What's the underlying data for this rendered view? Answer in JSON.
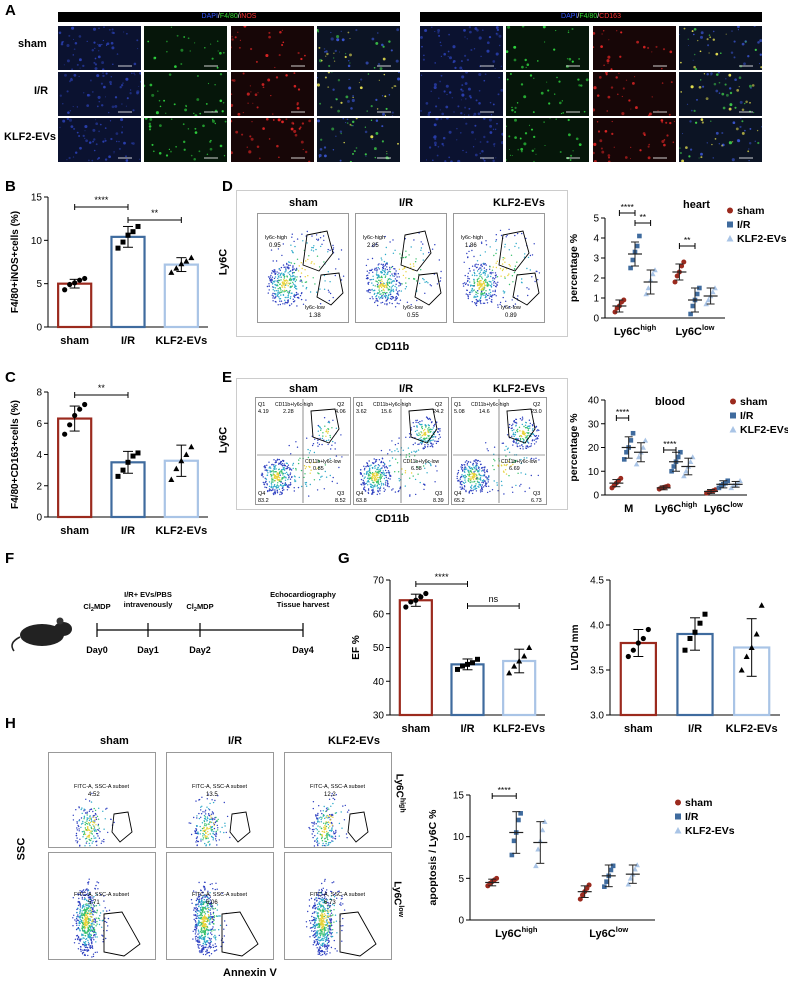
{
  "panels": [
    "A",
    "B",
    "C",
    "D",
    "E",
    "F",
    "G",
    "H"
  ],
  "a": {
    "left_header": [
      {
        "t": "DAPI",
        "c": "#3355ff"
      },
      {
        "t": "/",
        "c": "#ffffff"
      },
      {
        "t": "F4/80",
        "c": "#33dd33"
      },
      {
        "t": "/",
        "c": "#ffffff"
      },
      {
        "t": "iNOS",
        "c": "#ff3333"
      }
    ],
    "right_header": [
      {
        "t": "DAPI",
        "c": "#3355ff"
      },
      {
        "t": "/",
        "c": "#ffffff"
      },
      {
        "t": "F4/80",
        "c": "#33dd33"
      },
      {
        "t": "/",
        "c": "#ffffff"
      },
      {
        "t": "CD163",
        "c": "#ff3333"
      }
    ],
    "rows": [
      "sham",
      "I/R",
      "KLF2-EVs"
    ]
  },
  "groups": [
    "sham",
    "I/R",
    "KLF2-EVs"
  ],
  "colors": {
    "sham": "#9b2a1e",
    "ir": "#3f6b9e",
    "klf2": "#a9c4e6"
  },
  "b": {
    "chart_data": {
      "type": "bar",
      "ylabel": "F4/80+iNOS+cells (%)",
      "ylim": [
        0,
        15
      ],
      "yticks": [
        0,
        5,
        10,
        15
      ],
      "categories": [
        "sham",
        "I/R",
        "KLF2-EVs"
      ],
      "values": [
        5.0,
        10.4,
        7.2
      ],
      "err": [
        0.5,
        1.2,
        0.8
      ],
      "points": [
        [
          4.3,
          4.9,
          5.1,
          5.4,
          5.6
        ],
        [
          9.1,
          9.8,
          10.6,
          11.0,
          11.6
        ],
        [
          6.3,
          6.8,
          7.3,
          7.6,
          8.0
        ]
      ],
      "sig": [
        {
          "a": 0,
          "b": 1,
          "t": "****"
        },
        {
          "a": 1,
          "b": 2,
          "t": "**"
        }
      ]
    }
  },
  "c": {
    "chart_data": {
      "type": "bar",
      "ylabel": "F4/80+CD163+cells (%)",
      "ylim": [
        0,
        8
      ],
      "yticks": [
        0,
        2,
        4,
        6,
        8
      ],
      "categories": [
        "sham",
        "I/R",
        "KLF2-EVs"
      ],
      "values": [
        6.3,
        3.5,
        3.6
      ],
      "err": [
        0.8,
        0.7,
        1.0
      ],
      "points": [
        [
          5.3,
          5.9,
          6.5,
          6.9,
          7.2
        ],
        [
          2.6,
          3.0,
          3.5,
          3.9,
          4.1
        ],
        [
          2.4,
          3.1,
          3.6,
          4.0,
          4.5
        ]
      ],
      "sig": [
        {
          "a": 0,
          "b": 1,
          "t": "**"
        }
      ]
    }
  },
  "d": {
    "titles": [
      "sham",
      "I/R",
      "KLF2-EVs"
    ],
    "xlabel": "CD11b",
    "ylabel": "Ly6C",
    "gates": [
      {
        "high_name": "ly6c-high",
        "high": "0.95",
        "low_name": "ly6c-low",
        "low": "1.38"
      },
      {
        "high_name": "ly6c-high",
        "high": "2.85",
        "low_name": "ly6c-low",
        "low": "0.55"
      },
      {
        "high_name": "ly6c-high",
        "high": "1.86",
        "low_name": "ly6c-low",
        "low": "0.89"
      }
    ],
    "chart_data": {
      "type": "scatter",
      "title": "heart",
      "ylabel": "percentage %",
      "ylim": [
        0,
        5
      ],
      "yticks": [
        0,
        1,
        2,
        3,
        4,
        5
      ],
      "categories": [
        {
          "base": "Ly6C",
          "sup": "high"
        },
        {
          "base": "Ly6C",
          "sup": "low"
        }
      ],
      "series": [
        {
          "name": "sham",
          "means": [
            0.6,
            2.3
          ],
          "err": [
            0.3,
            0.4
          ],
          "points": [
            [
              0.3,
              0.5,
              0.6,
              0.8,
              0.9
            ],
            [
              1.8,
              2.1,
              2.3,
              2.6,
              2.8
            ]
          ]
        },
        {
          "name": "I/R",
          "means": [
            3.2,
            0.9
          ],
          "err": [
            0.6,
            0.6
          ],
          "points": [
            [
              2.5,
              2.9,
              3.3,
              3.6,
              4.1
            ],
            [
              0.2,
              0.6,
              0.9,
              1.2,
              1.5
            ]
          ]
        },
        {
          "name": "KLF2-EVs",
          "means": [
            1.8,
            1.1
          ],
          "err": [
            0.6,
            0.4
          ],
          "points": [
            [
              1.2,
              1.5,
              1.9,
              2.2,
              2.4
            ],
            [
              0.7,
              0.9,
              1.1,
              1.3,
              1.5
            ]
          ]
        }
      ],
      "sig": [
        {
          "cat": 0,
          "a": 0,
          "b": 1,
          "t": "****"
        },
        {
          "cat": 0,
          "a": 1,
          "b": 2,
          "t": "**"
        },
        {
          "cat": 1,
          "a": 0,
          "b": 1,
          "t": "**"
        }
      ]
    }
  },
  "e": {
    "titles": [
      "sham",
      "I/R",
      "KLF2-EVs"
    ],
    "xlabel": "CD11b",
    "ylabel": "Ly6C",
    "quads": [
      {
        "q1": "Q1",
        "q1v": "4.19",
        "q2": "Q2",
        "q2v": "4.06",
        "q3": "Q3",
        "q3v": "8.52",
        "q4": "Q4",
        "q4v": "83.2",
        "hi_name": "CD11b+ly6c-high",
        "hi": "2.28",
        "lo_name": "CD11b+ly6c-low",
        "lo": "0.85"
      },
      {
        "q1": "Q1",
        "q1v": "3.62",
        "q2": "Q2",
        "q2v": "24.2",
        "q3": "Q3",
        "q3v": "8.39",
        "q4": "Q4",
        "q4v": "63.8",
        "hi_name": "CD11b+ly6c-high",
        "hi": "15.6",
        "lo_name": "CD11b+ly6c-low",
        "lo": "6.58"
      },
      {
        "q1": "Q1",
        "q1v": "5.08",
        "q2": "Q2",
        "q2v": "23.0",
        "q3": "Q3",
        "q3v": "6.73",
        "q4": "Q4",
        "q4v": "65.2",
        "hi_name": "CD11b+ly6c-high",
        "hi": "14.6",
        "lo_name": "CD11b+ly6c-low",
        "lo": "6.69"
      }
    ],
    "chart_data": {
      "type": "scatter",
      "title": "blood",
      "ylabel": "percentage %",
      "ylim": [
        0,
        40
      ],
      "yticks": [
        0,
        10,
        20,
        30,
        40
      ],
      "categories": [
        {
          "base": "M",
          "sup": ""
        },
        {
          "base": "Ly6C",
          "sup": "high"
        },
        {
          "base": "Ly6C",
          "sup": "low"
        }
      ],
      "series": [
        {
          "name": "sham",
          "means": [
            5,
            3,
            1.5
          ],
          "err": [
            1.5,
            0.8,
            0.8
          ],
          "points": [
            [
              3,
              4,
              5,
              6,
              7
            ],
            [
              2.5,
              3,
              3.2,
              3.5,
              3.8
            ],
            [
              0.8,
              1.2,
              1.5,
              1.8,
              2.2
            ]
          ]
        },
        {
          "name": "I/R",
          "means": [
            20,
            14,
            4.5
          ],
          "err": [
            4.5,
            4,
            1.5
          ],
          "points": [
            [
              15,
              18,
              20,
              23,
              26
            ],
            [
              10,
              12,
              14,
              16,
              18
            ],
            [
              3,
              4,
              4.5,
              5,
              6
            ]
          ]
        },
        {
          "name": "KLF2-EVs",
          "means": [
            18,
            12,
            4.5
          ],
          "err": [
            4,
            3.5,
            1.2
          ],
          "points": [
            [
              13,
              16,
              18,
              20,
              23
            ],
            [
              8,
              10,
              12,
              14,
              16
            ],
            [
              3,
              4,
              4.5,
              5,
              6
            ]
          ]
        }
      ],
      "sig": [
        {
          "cat": 0,
          "a": 0,
          "b": 1,
          "t": "****"
        },
        {
          "cat": 1,
          "a": 0,
          "b": 1,
          "t": "****"
        }
      ]
    }
  },
  "f": {
    "days": [
      "Day0",
      "Day1",
      "Day2",
      "Day4"
    ],
    "events": [
      {
        "lines": [
          {
            "parts": [
              {
                "t": "Cl",
                "s": ""
              },
              {
                "t": "2",
                "s": "sub"
              },
              {
                "t": "MDP",
                "s": ""
              }
            ]
          }
        ]
      },
      {
        "lines": [
          {
            "parts": [
              {
                "t": "I/R+ EVs/PBS",
                "s": ""
              }
            ]
          },
          {
            "parts": [
              {
                "t": "intravenously",
                "s": ""
              }
            ]
          }
        ]
      },
      {
        "lines": [
          {
            "parts": [
              {
                "t": "Cl",
                "s": ""
              },
              {
                "t": "2",
                "s": "sub"
              },
              {
                "t": "MDP",
                "s": ""
              }
            ]
          }
        ]
      },
      {
        "lines": [
          {
            "parts": [
              {
                "t": "Echocardiography",
                "s": ""
              }
            ]
          },
          {
            "parts": [
              {
                "t": "Tissue harvest",
                "s": ""
              }
            ]
          }
        ]
      }
    ]
  },
  "g": {
    "ef": {
      "chart_data": {
        "type": "bar",
        "ylabel": "EF %",
        "ylim": [
          30,
          70
        ],
        "yticks": [
          30,
          40,
          50,
          60,
          70
        ],
        "categories": [
          "sham",
          "I/R",
          "KLF2-EVs"
        ],
        "values": [
          64,
          45,
          46
        ],
        "err": [
          1.8,
          1.6,
          3.5
        ],
        "points": [
          [
            62,
            63.5,
            64,
            65,
            66
          ],
          [
            43.5,
            44.5,
            45,
            45.5,
            46.5
          ],
          [
            42.5,
            44.5,
            46,
            47.5,
            50
          ]
        ],
        "sig": [
          {
            "a": 0,
            "b": 1,
            "t": "****"
          },
          {
            "a": 1,
            "b": 2,
            "t": "ns"
          }
        ]
      }
    },
    "lvdd": {
      "chart_data": {
        "type": "bar",
        "ylabel": "LVDd mm",
        "ylim": [
          3.0,
          4.5
        ],
        "yticks": [
          "3.0",
          "3.5",
          "4.0",
          "4.5"
        ],
        "categories": [
          "sham",
          "I/R",
          "KLF2-EVs"
        ],
        "values": [
          3.8,
          3.9,
          3.75
        ],
        "err": [
          0.15,
          0.18,
          0.32
        ],
        "points": [
          [
            3.65,
            3.72,
            3.8,
            3.85,
            3.95
          ],
          [
            3.72,
            3.85,
            3.92,
            4.02,
            4.12
          ],
          [
            3.5,
            3.65,
            3.75,
            3.9,
            4.22
          ]
        ],
        "sig": []
      }
    }
  },
  "h": {
    "titles": [
      "sham",
      "I/R",
      "KLF2-EVs"
    ],
    "xlabel": "Annexin V",
    "ylabel": "SSC",
    "row_labels": [
      {
        "base": "Ly6C",
        "sup": "high"
      },
      {
        "base": "Ly6C",
        "sup": "low"
      }
    ],
    "gates": [
      [
        {
          "name": "FITC-A, SSC-A subset",
          "v": "4.52"
        },
        {
          "name": "FITC-A, SSC-A subset",
          "v": "13.5"
        },
        {
          "name": "FITC-A, SSC-A subset",
          "v": "12.2"
        }
      ],
      [
        {
          "name": "FITC-A, SSC-A subset",
          "v": "5.71"
        },
        {
          "name": "FITC-A, SSC-A subset",
          "v": "6.06"
        },
        {
          "name": "FITC-A, SSC-A subset",
          "v": "6.73"
        }
      ]
    ],
    "chart_data": {
      "type": "scatter",
      "ylabel": "apoptosis / Ly6C %",
      "ylim": [
        0,
        15
      ],
      "yticks": [
        0,
        5,
        10,
        15
      ],
      "categories": [
        {
          "base": "Ly6C",
          "sup": "high"
        },
        {
          "base": "Ly6C",
          "sup": "low"
        }
      ],
      "series": [
        {
          "name": "sham",
          "means": [
            4.5,
            3.4
          ],
          "err": [
            0.4,
            0.7
          ],
          "points": [
            [
              4.1,
              4.4,
              4.6,
              4.8,
              5.0
            ],
            [
              2.5,
              3.0,
              3.4,
              3.8,
              4.2
            ]
          ]
        },
        {
          "name": "I/R",
          "means": [
            10.5,
            5.3
          ],
          "err": [
            2.5,
            1.3
          ],
          "points": [
            [
              7.8,
              9.5,
              10.5,
              12.0,
              12.8
            ],
            [
              4.0,
              4.6,
              5.3,
              6.0,
              6.5
            ]
          ]
        },
        {
          "name": "KLF2-EVs",
          "means": [
            9.3,
            5.5
          ],
          "err": [
            2.5,
            1.1
          ],
          "points": [
            [
              6.5,
              8.5,
              9.5,
              10.8,
              11.8
            ],
            [
              4.3,
              5.0,
              5.5,
              6.1,
              6.6
            ]
          ]
        }
      ],
      "sig": [
        {
          "cat": 0,
          "a": 0,
          "b": 1,
          "t": "****"
        }
      ]
    }
  }
}
